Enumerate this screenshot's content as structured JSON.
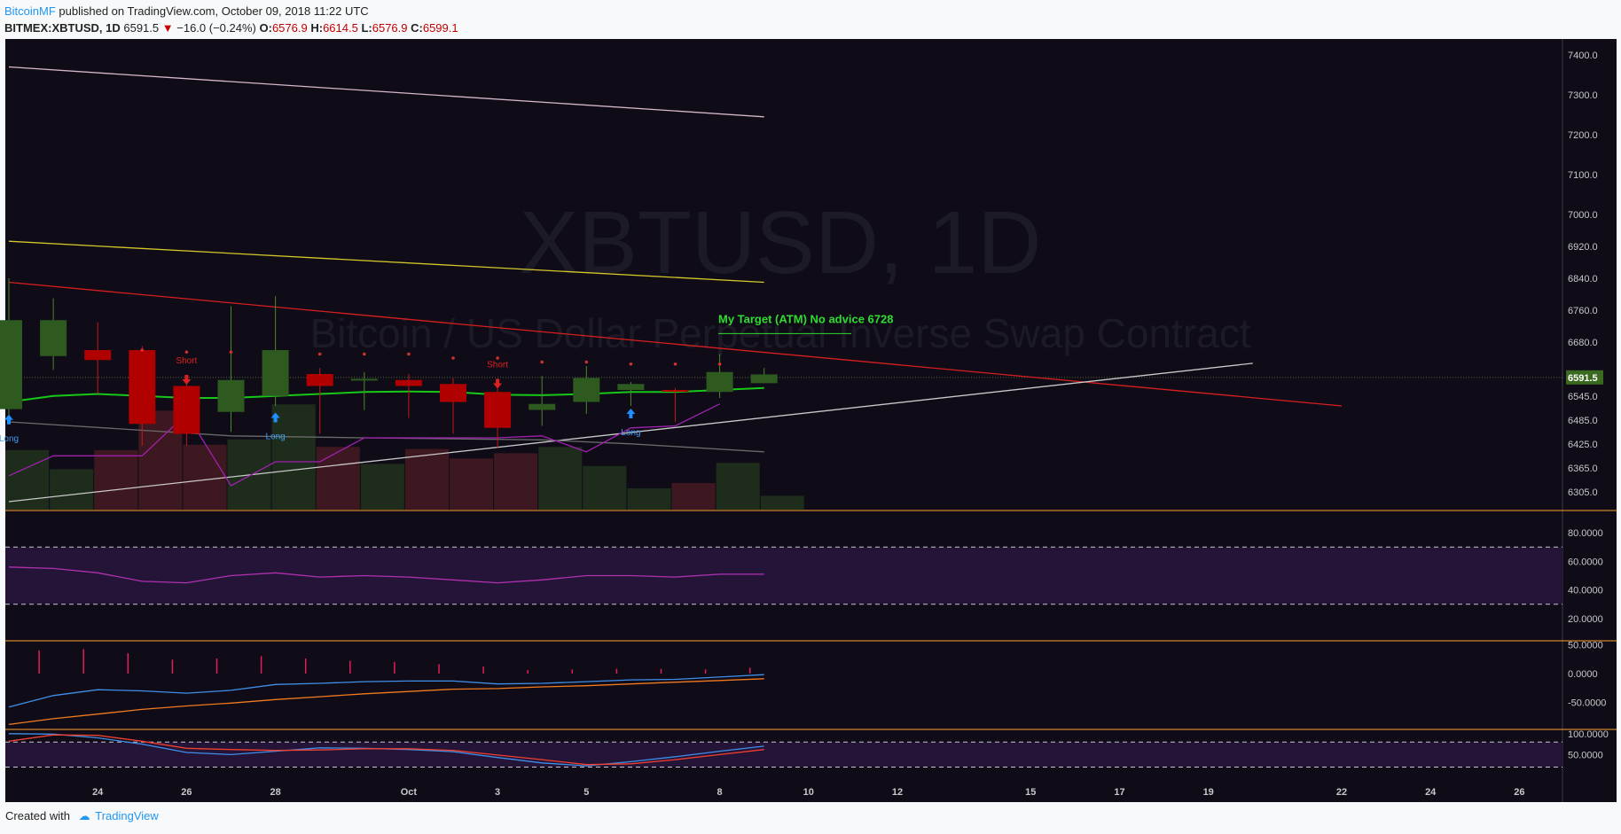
{
  "header": {
    "author": "BitcoinMF",
    "published": " published on TradingView.com, October 09, 2018 11:22 UTC",
    "symbol": "BITMEX:XBTUSD, 1D",
    "last": "6591.5",
    "change": "−16.0 (−0.24%)",
    "o_label": "O:",
    "o_value": "6576.9",
    "h_label": "H:",
    "h_value": "6614.5",
    "l_label": "L:",
    "l_value": "6576.9",
    "c_label": "C:",
    "c_value": "6599.1"
  },
  "footer": {
    "created_with": "Created with",
    "brand": "TradingView"
  },
  "watermark": {
    "symbol": "XBTUSD, 1D",
    "description": "Bitcoin / US Dollar Perpetual Inverse Swap Contract"
  },
  "annotation": {
    "text": "My Target (ATM) No advice 6728",
    "price": 6728
  },
  "last_price_label": "6591.5",
  "colors": {
    "background": "#0f0c18",
    "up": "#2f5a1f",
    "down": "#b00000",
    "volume_up": "#1e2c1c",
    "volume_down": "#3e1820",
    "pane_border": "#ff9f2e",
    "rsi_band": "#241438"
  },
  "chart_data": [
    {
      "type": "candlestick",
      "pane": "price",
      "ylim": [
        6260,
        7440
      ],
      "y_ticks": [
        7400,
        7300,
        7200,
        7100,
        7000,
        6920,
        6840,
        6760,
        6680,
        6591.5,
        6545,
        6485,
        6425,
        6365,
        6305
      ],
      "y_tick_labels": [
        "7400.0",
        "7300.0",
        "7200.0",
        "7100.0",
        "7000.0",
        "6920.0",
        "6840.0",
        "6760.0",
        "6680.0",
        "6591.5",
        "6545.0",
        "6485.0",
        "6425.0",
        "6365.0",
        "6305.0"
      ],
      "x_tick_labels": [
        "24",
        "26",
        "28",
        "Oct",
        "3",
        "5",
        "8",
        "10",
        "12",
        "15",
        "17",
        "19",
        "22",
        "24",
        "26"
      ],
      "x_tick_days": [
        2,
        4,
        6,
        9,
        11,
        13,
        16,
        18,
        20,
        23,
        25,
        27,
        30,
        32,
        34
      ],
      "candles": [
        {
          "day": 0,
          "o": 6512,
          "h": 6840,
          "l": 6480,
          "c": 6735
        },
        {
          "day": 1,
          "o": 6645,
          "h": 6790,
          "l": 6610,
          "c": 6735
        },
        {
          "day": 2,
          "o": 6660,
          "h": 6730,
          "l": 6550,
          "c": 6635
        },
        {
          "day": 3,
          "o": 6660,
          "h": 6670,
          "l": 6420,
          "c": 6475
        },
        {
          "day": 4,
          "o": 6570,
          "h": 6595,
          "l": 6420,
          "c": 6450
        },
        {
          "day": 5,
          "o": 6505,
          "h": 6770,
          "l": 6455,
          "c": 6585
        },
        {
          "day": 6,
          "o": 6545,
          "h": 6795,
          "l": 6520,
          "c": 6660
        },
        {
          "day": 7,
          "o": 6600,
          "h": 6615,
          "l": 6450,
          "c": 6570
        },
        {
          "day": 8,
          "o": 6585,
          "h": 6605,
          "l": 6510,
          "c": 6588
        },
        {
          "day": 9,
          "o": 6585,
          "h": 6600,
          "l": 6490,
          "c": 6570
        },
        {
          "day": 10,
          "o": 6575,
          "h": 6590,
          "l": 6450,
          "c": 6530
        },
        {
          "day": 11,
          "o": 6555,
          "h": 6570,
          "l": 6415,
          "c": 6465
        },
        {
          "day": 12,
          "o": 6510,
          "h": 6595,
          "l": 6470,
          "c": 6525
        },
        {
          "day": 13,
          "o": 6530,
          "h": 6620,
          "l": 6500,
          "c": 6590
        },
        {
          "day": 14,
          "o": 6560,
          "h": 6580,
          "l": 6520,
          "c": 6575
        },
        {
          "day": 15,
          "o": 6560,
          "h": 6565,
          "l": 6480,
          "c": 6558
        },
        {
          "day": 16,
          "o": 6555,
          "h": 6650,
          "l": 6540,
          "c": 6605
        },
        {
          "day": 17,
          "o": 6577,
          "h": 6615,
          "l": 6577,
          "c": 6599
        }
      ],
      "volume": [
        {
          "day": 0,
          "v": 0.56,
          "up": true
        },
        {
          "day": 1,
          "v": 0.38,
          "up": true
        },
        {
          "day": 2,
          "v": 0.56,
          "up": false
        },
        {
          "day": 3,
          "v": 0.93,
          "up": false
        },
        {
          "day": 4,
          "v": 0.61,
          "up": false
        },
        {
          "day": 5,
          "v": 0.66,
          "up": true
        },
        {
          "day": 6,
          "v": 0.99,
          "up": true
        },
        {
          "day": 7,
          "v": 0.59,
          "up": false
        },
        {
          "day": 8,
          "v": 0.43,
          "up": true
        },
        {
          "day": 9,
          "v": 0.57,
          "up": false
        },
        {
          "day": 10,
          "v": 0.48,
          "up": false
        },
        {
          "day": 11,
          "v": 0.53,
          "up": false
        },
        {
          "day": 12,
          "v": 0.59,
          "up": true
        },
        {
          "day": 13,
          "v": 0.41,
          "up": true
        },
        {
          "day": 14,
          "v": 0.2,
          "up": true
        },
        {
          "day": 15,
          "v": 0.25,
          "up": false
        },
        {
          "day": 16,
          "v": 0.44,
          "up": true
        },
        {
          "day": 17,
          "v": 0.13,
          "up": true
        }
      ],
      "lines": [
        {
          "name": "upper-band",
          "color": "#d8b8c8",
          "points": [
            [
              0,
              7370
            ],
            [
              17,
              7245
            ]
          ]
        },
        {
          "name": "yellow-ma",
          "color": "#d4c72a",
          "points": [
            [
              0,
              6933
            ],
            [
              17,
              6830
            ]
          ]
        },
        {
          "name": "red-trendline",
          "color": "#d81e1e",
          "points": [
            [
              0,
              6830
            ],
            [
              30,
              6520
            ]
          ]
        },
        {
          "name": "white-trendline",
          "color": "#c8c8c8",
          "points": [
            [
              0,
              6280
            ],
            [
              28,
              6627
            ]
          ]
        },
        {
          "name": "grey-ma",
          "color": "#6a6a6a",
          "points": [
            [
              0,
              6480
            ],
            [
              5,
              6445
            ],
            [
              8,
              6440
            ],
            [
              12,
              6435
            ],
            [
              14,
              6425
            ],
            [
              17,
              6405
            ]
          ]
        },
        {
          "name": "green-ma",
          "color": "#18c818",
          "points": [
            [
              0,
              6530
            ],
            [
              1,
              6545
            ],
            [
              2,
              6550
            ],
            [
              3,
              6545
            ],
            [
              4,
              6540
            ],
            [
              5,
              6540
            ],
            [
              6,
              6545
            ],
            [
              7,
              6550
            ],
            [
              8,
              6555
            ],
            [
              9,
              6556
            ],
            [
              10,
              6555
            ],
            [
              11,
              6548
            ],
            [
              12,
              6547
            ],
            [
              13,
              6550
            ],
            [
              14,
              6555
            ],
            [
              15,
              6555
            ],
            [
              16,
              6560
            ],
            [
              17,
              6565
            ]
          ]
        },
        {
          "name": "purple-line",
          "color": "#a020b0",
          "points": [
            [
              0,
              6345
            ],
            [
              1,
              6395
            ],
            [
              2,
              6395
            ],
            [
              3,
              6395
            ],
            [
              4,
              6500
            ],
            [
              5,
              6320
            ],
            [
              6,
              6380
            ],
            [
              7,
              6380
            ],
            [
              8,
              6440
            ],
            [
              9,
              6440
            ],
            [
              10,
              6440
            ],
            [
              11,
              6440
            ],
            [
              12,
              6445
            ],
            [
              13,
              6405
            ],
            [
              14,
              6465
            ],
            [
              15,
              6470
            ],
            [
              16,
              6525
            ]
          ]
        }
      ],
      "signals": [
        {
          "day": 0,
          "type": "long",
          "label": "Long",
          "price": 6485
        },
        {
          "day": 4,
          "type": "short",
          "label": "Short",
          "price": 6600
        },
        {
          "day": 6,
          "type": "long",
          "label": "Long",
          "price": 6490
        },
        {
          "day": 11,
          "type": "short",
          "label": "Short",
          "price": 6590
        },
        {
          "day": 14,
          "type": "long",
          "label": "Long",
          "price": 6500
        }
      ],
      "dots": [
        {
          "day": 3,
          "price": 6660
        },
        {
          "day": 4,
          "price": 6655
        },
        {
          "day": 5,
          "price": 6655
        },
        {
          "day": 7,
          "price": 6650
        },
        {
          "day": 8,
          "price": 6650
        },
        {
          "day": 9,
          "price": 6650
        },
        {
          "day": 10,
          "price": 6640
        },
        {
          "day": 11,
          "price": 6640
        },
        {
          "day": 12,
          "price": 6630
        },
        {
          "day": 13,
          "price": 6630
        },
        {
          "day": 14,
          "price": 6625
        },
        {
          "day": 15,
          "price": 6625
        },
        {
          "day": 16,
          "price": 6625
        }
      ]
    },
    {
      "type": "line",
      "pane": "rsi",
      "ylim": [
        5,
        95
      ],
      "y_tick_labels": [
        "80.0000",
        "60.0000",
        "40.0000",
        "20.0000"
      ],
      "y_ticks": [
        80,
        60,
        40,
        20
      ],
      "band": [
        30,
        70
      ],
      "series": [
        {
          "values": [
            56,
            55,
            52,
            46,
            45,
            50,
            52,
            49,
            50,
            49,
            47,
            45,
            47,
            50,
            50,
            49,
            51,
            51
          ],
          "color": "#b030b0"
        }
      ]
    },
    {
      "type": "line",
      "pane": "macd",
      "ylim": [
        -95,
        55
      ],
      "y_tick_labels": [
        "50.0000",
        "0.0000",
        "-50.0000"
      ],
      "y_ticks": [
        50,
        0,
        -50
      ],
      "histogram": [
        44,
        40,
        42,
        35,
        24,
        26,
        30,
        26,
        22,
        20,
        16,
        12,
        6,
        7,
        8,
        8,
        7,
        10
      ],
      "series": [
        {
          "values": [
            -58,
            -38,
            -28,
            -30,
            -34,
            -29,
            -19,
            -17,
            -14,
            -13,
            -13,
            -18,
            -17,
            -14,
            -11,
            -10,
            -6,
            -2
          ],
          "color": "#3f8fe8"
        },
        {
          "values": [
            -88,
            -78,
            -70,
            -62,
            -56,
            -51,
            -45,
            -40,
            -35,
            -31,
            -27,
            -26,
            -23,
            -21,
            -18,
            -15,
            -12,
            -9
          ],
          "color": "#f07a20"
        }
      ]
    },
    {
      "type": "line",
      "pane": "stoch",
      "ylim": [
        0,
        108
      ],
      "y_tick_labels": [
        "100.0000",
        "50.0000"
      ],
      "y_ticks": [
        100,
        50
      ],
      "band": [
        20,
        80
      ],
      "series": [
        {
          "values": [
            100,
            99,
            90,
            75,
            55,
            50,
            58,
            66,
            65,
            62,
            57,
            43,
            30,
            23,
            33,
            45,
            58,
            70
          ],
          "color": "#3f8fe8"
        },
        {
          "values": [
            82,
            97,
            96,
            82,
            65,
            62,
            60,
            61,
            64,
            64,
            60,
            49,
            38,
            26,
            28,
            38,
            50,
            62
          ],
          "color": "#f04030"
        }
      ]
    }
  ]
}
